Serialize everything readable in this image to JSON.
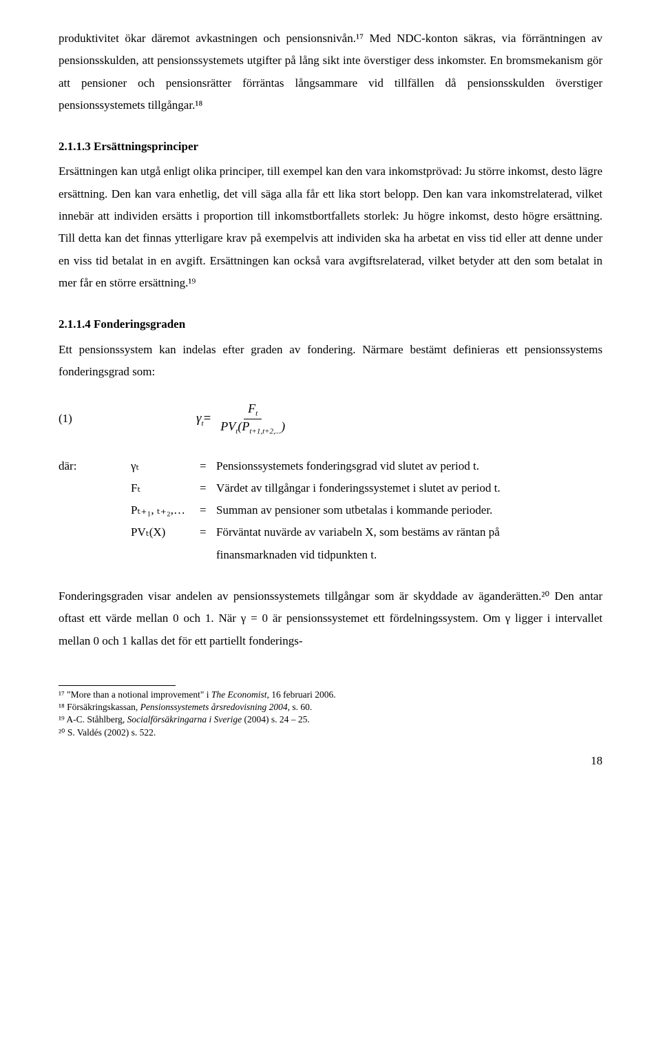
{
  "para1": "produktivitet ökar däremot avkastningen och pensionsnivån.¹⁷ Med NDC-konton säkras, via förräntningen av pensionsskulden, att pensionssystemets utgifter på lång sikt inte överstiger dess inkomster. En bromsmekanism gör att pensioner och pensionsrätter förräntas långsammare vid tillfällen då pensionsskulden överstiger pensionssystemets tillgångar.¹⁸",
  "heading213": "2.1.1.3 Ersättningsprinciper",
  "para2": "Ersättningen kan utgå enligt olika principer, till exempel kan den vara inkomstprövad: Ju större inkomst, desto lägre ersättning. Den kan vara enhetlig, det vill säga alla får ett lika stort belopp. Den kan vara inkomstrelaterad, vilket innebär att individen ersätts i proportion till inkomstbortfallets storlek: Ju högre inkomst, desto högre ersättning. Till detta kan det finnas ytterligare krav på exempelvis att individen ska ha arbetat en viss tid eller att denne under en viss tid betalat in en avgift. Ersättningen kan också vara avgiftsrelaterad, vilket betyder att den som betalat in mer får en större ersättning.¹⁹",
  "heading214": "2.1.1.4 Fonderingsgraden",
  "para3": "Ett pensionssystem kan indelas efter graden av fondering. Närmare bestämt definieras ett pensionssystems fonderingsgrad som:",
  "formula": {
    "label": "(1)",
    "gamma_t": "γ",
    "equals": " = ",
    "num": "F",
    "den_pv": "PV",
    "den_paren_open": "(",
    "den_p": "P",
    "den_paren_close": ")"
  },
  "definitions": {
    "where": "där:",
    "rows": [
      {
        "sym": "γₜ",
        "eq": "=",
        "txt": "Pensionssystemets fonderingsgrad vid slutet av period t."
      },
      {
        "sym": "Fₜ",
        "eq": "=",
        "txt": "Värdet av tillgångar i fonderingssystemet i slutet av period t."
      },
      {
        "sym": "Pₜ₊₁, ₜ₊₂,…",
        "eq": "=",
        "txt": "Summan av pensioner som utbetalas i kommande perioder."
      },
      {
        "sym": "PVₜ(X)",
        "eq": "=",
        "txt": "Förväntat nuvärde av variabeln X, som bestäms av räntan på"
      }
    ],
    "cont": "finansmarknaden vid tidpunkten t."
  },
  "para4": "Fonderingsgraden visar andelen av pensionssystemets tillgångar som är skyddade av äganderätten.²⁰ Den antar oftast ett värde mellan 0 och 1. När γ = 0 är pensionssystemet ett fördelningssystem. Om γ ligger i intervallet mellan 0 och 1 kallas det för ett partiellt fonderings-",
  "footnotes": {
    "fn17_a": "¹⁷ \"More than a notional improvement\" i ",
    "fn17_i": "The Economist",
    "fn17_b": ", 16 februari 2006.",
    "fn18_a": "¹⁸ Försäkringskassan, ",
    "fn18_i": "Pensionssystemets årsredovisning 2004",
    "fn18_b": ", s. 60.",
    "fn19_a": "¹⁹ A-C. Ståhlberg, ",
    "fn19_i": "Socialförsäkringarna i Sverige",
    "fn19_b": " (2004) s. 24 – 25.",
    "fn20": "²⁰ S. Valdés (2002) s. 522."
  },
  "page_number": "18"
}
